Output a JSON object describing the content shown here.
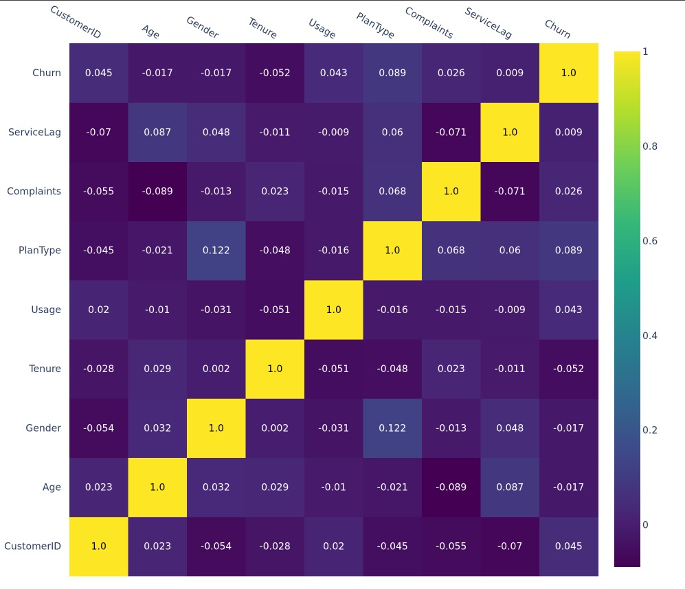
{
  "chart_data": {
    "type": "heatmap",
    "x": [
      "CustomerID",
      "Age",
      "Gender",
      "Tenure",
      "Usage",
      "PlanType",
      "Complaints",
      "ServiceLag",
      "Churn"
    ],
    "y": [
      "CustomerID",
      "Age",
      "Gender",
      "Tenure",
      "Usage",
      "PlanType",
      "Complaints",
      "ServiceLag",
      "Churn"
    ],
    "z": [
      [
        "1.0",
        "0.023",
        "-0.054",
        "-0.028",
        "0.02",
        "-0.045",
        "-0.055",
        "-0.07",
        "0.045"
      ],
      [
        "0.023",
        "1.0",
        "0.032",
        "0.029",
        "-0.01",
        "-0.021",
        "-0.089",
        "0.087",
        "-0.017"
      ],
      [
        "-0.054",
        "0.032",
        "1.0",
        "0.002",
        "-0.031",
        "0.122",
        "-0.013",
        "0.048",
        "-0.017"
      ],
      [
        "-0.028",
        "0.029",
        "0.002",
        "1.0",
        "-0.051",
        "-0.048",
        "0.023",
        "-0.011",
        "-0.052"
      ],
      [
        "0.02",
        "-0.01",
        "-0.031",
        "-0.051",
        "1.0",
        "-0.016",
        "-0.015",
        "-0.009",
        "0.043"
      ],
      [
        "-0.045",
        "-0.021",
        "0.122",
        "-0.048",
        "-0.016",
        "1.0",
        "0.068",
        "0.06",
        "0.089"
      ],
      [
        "-0.055",
        "-0.089",
        "-0.013",
        "0.023",
        "-0.015",
        "0.068",
        "1.0",
        "-0.071",
        "0.026"
      ],
      [
        "-0.07",
        "0.087",
        "0.048",
        "-0.011",
        "-0.009",
        "0.06",
        "-0.071",
        "1.0",
        "0.009"
      ],
      [
        "0.045",
        "-0.017",
        "-0.017",
        "-0.052",
        "0.043",
        "0.089",
        "0.026",
        "0.009",
        "1.0"
      ]
    ],
    "zmin": -0.089,
    "zmax": 1.0,
    "colorscale": "Viridis",
    "colorbar_ticks": [
      "0",
      "0.2",
      "0.4",
      "0.6",
      "0.8",
      "1"
    ],
    "colorbar_tick_values": [
      0,
      0.2,
      0.4,
      0.6,
      0.8,
      1
    ],
    "x_axis_position": "top",
    "x_tick_angle": 30,
    "title": "",
    "xlabel": "",
    "ylabel": ""
  },
  "colors": {
    "axis_text": "#2a3f5f",
    "viridis": [
      "#440154",
      "#482878",
      "#3e4989",
      "#31688e",
      "#26828e",
      "#1f9e89",
      "#35b779",
      "#6ece58",
      "#b5de2b",
      "#fde725"
    ]
  }
}
